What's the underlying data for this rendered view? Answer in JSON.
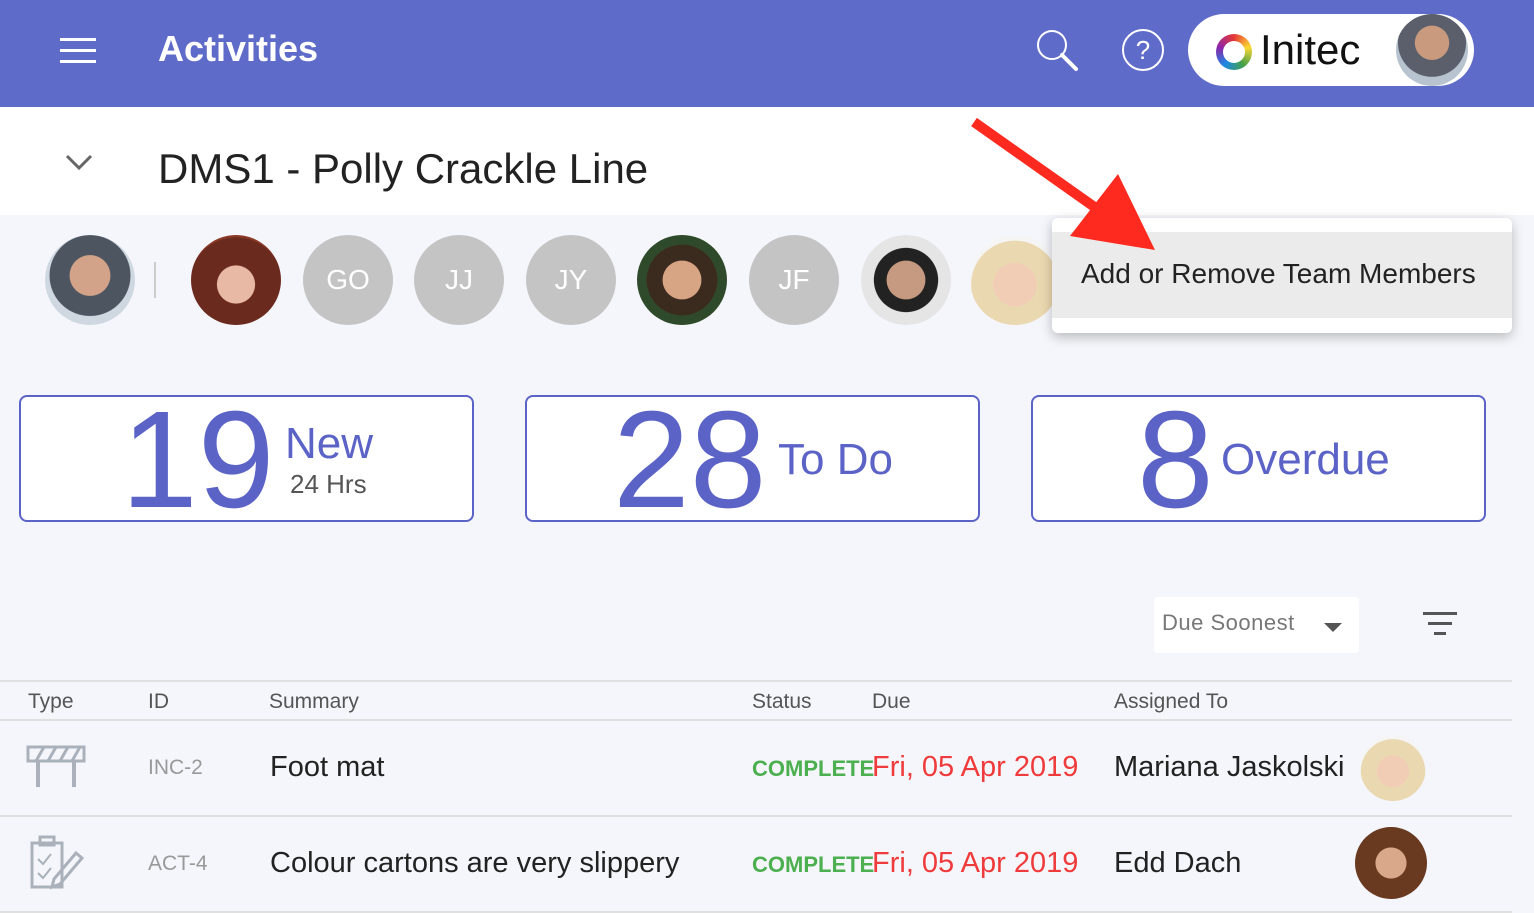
{
  "header": {
    "title": "Activities",
    "brand": "Initec",
    "icons": [
      "menu-icon",
      "search-icon",
      "help-icon"
    ],
    "color": "#5f6bc9"
  },
  "project": {
    "title": "DMS1 - Polly Crackle Line"
  },
  "team": {
    "members": [
      {
        "initials": ""
      },
      {
        "initials": ""
      },
      {
        "initials": "GO"
      },
      {
        "initials": "JJ"
      },
      {
        "initials": "JY"
      },
      {
        "initials": ""
      },
      {
        "initials": "JF"
      },
      {
        "initials": ""
      },
      {
        "initials": ""
      }
    ]
  },
  "menu": {
    "items": [
      "Add or Remove Team Members"
    ]
  },
  "stats": [
    {
      "value": "19",
      "label": "New",
      "sub": "24 Hrs"
    },
    {
      "value": "28",
      "label": "To Do"
    },
    {
      "value": "8",
      "label": "Overdue"
    }
  ],
  "sort": {
    "selected": "Due Soonest"
  },
  "table": {
    "columns": [
      "Type",
      "ID",
      "Summary",
      "Status",
      "Due",
      "Assigned To"
    ],
    "rows": [
      {
        "type": "incident-barrier-icon",
        "id": "INC-2",
        "summary": "Foot mat",
        "status": "COMPLETE",
        "due": "Fri, 05 Apr 2019",
        "assigned": "Mariana Jaskolski"
      },
      {
        "type": "action-clipboard-icon",
        "id": "ACT-4",
        "summary": "Colour cartons are very slippery",
        "status": "COMPLETE",
        "due": "Fri, 05 Apr 2019",
        "assigned": "Edd Dach"
      }
    ]
  },
  "colors": {
    "accent": "#5b63c7",
    "complete": "#4caf50",
    "due": "#ef3b3b",
    "annotation_arrow": "#ff2a1f"
  }
}
